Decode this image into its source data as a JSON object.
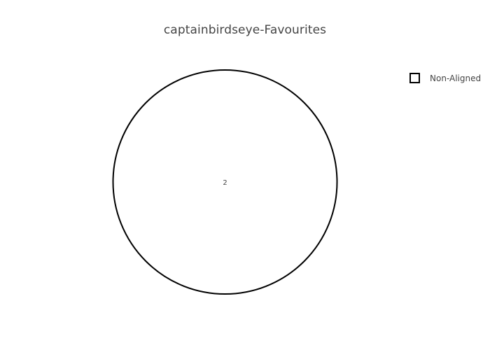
{
  "chart_data": {
    "type": "pie",
    "title": "captainbirdseye-Favourites",
    "labels": [
      "Non-Aligned"
    ],
    "values": [
      2
    ],
    "slice_text": [
      "2"
    ],
    "slice_fill": "#ffffff",
    "slice_stroke": "#000000",
    "legend": {
      "placement": "top-right",
      "entries": [
        "Non-Aligned"
      ]
    }
  }
}
